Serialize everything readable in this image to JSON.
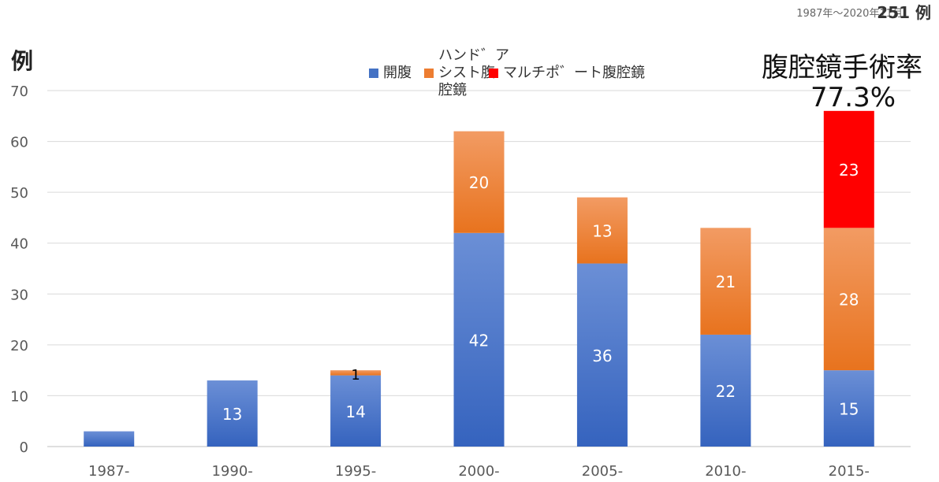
{
  "header": {
    "period": "1987年〜2020年11月",
    "total": "251 例"
  },
  "y_axis_label": "例",
  "rate": {
    "title": "腹腔鏡手術率",
    "value": "77.3%"
  },
  "legend": [
    {
      "label": "開腹",
      "color": "#4472C4"
    },
    {
      "label": "ハンド゛ア\nシスト腹\n腔鏡",
      "color": "#ED7D31"
    },
    {
      "label": "マルチポ゛ート腹腔鏡",
      "color": "#FF0000"
    }
  ],
  "chart_data": {
    "type": "bar",
    "stacked": true,
    "categories": [
      "1987-",
      "1990-",
      "1995-",
      "2000-",
      "2005-",
      "2010-",
      "2015-"
    ],
    "series": [
      {
        "name": "開腹",
        "color": "#4472C4",
        "values": [
          3,
          13,
          14,
          42,
          36,
          22,
          15
        ],
        "labels": [
          "",
          "13",
          "14",
          "42",
          "36",
          "22",
          "15"
        ]
      },
      {
        "name": "ハンドアシスト腹腔鏡",
        "color": "#ED7D31",
        "values": [
          0,
          0,
          1,
          20,
          13,
          21,
          28
        ],
        "labels": [
          "",
          "",
          "1",
          "20",
          "13",
          "21",
          "28"
        ]
      },
      {
        "name": "マルチポート腹腔鏡",
        "color": "#FF0000",
        "values": [
          0,
          0,
          0,
          0,
          0,
          0,
          23
        ],
        "labels": [
          "",
          "",
          "",
          "",
          "",
          "",
          "23"
        ]
      }
    ],
    "y_ticks": [
      "0",
      "10",
      "20",
      "30",
      "40",
      "50",
      "60",
      "70"
    ],
    "ylim": [
      0,
      70
    ],
    "grid": true,
    "legend_position": "top-center"
  }
}
